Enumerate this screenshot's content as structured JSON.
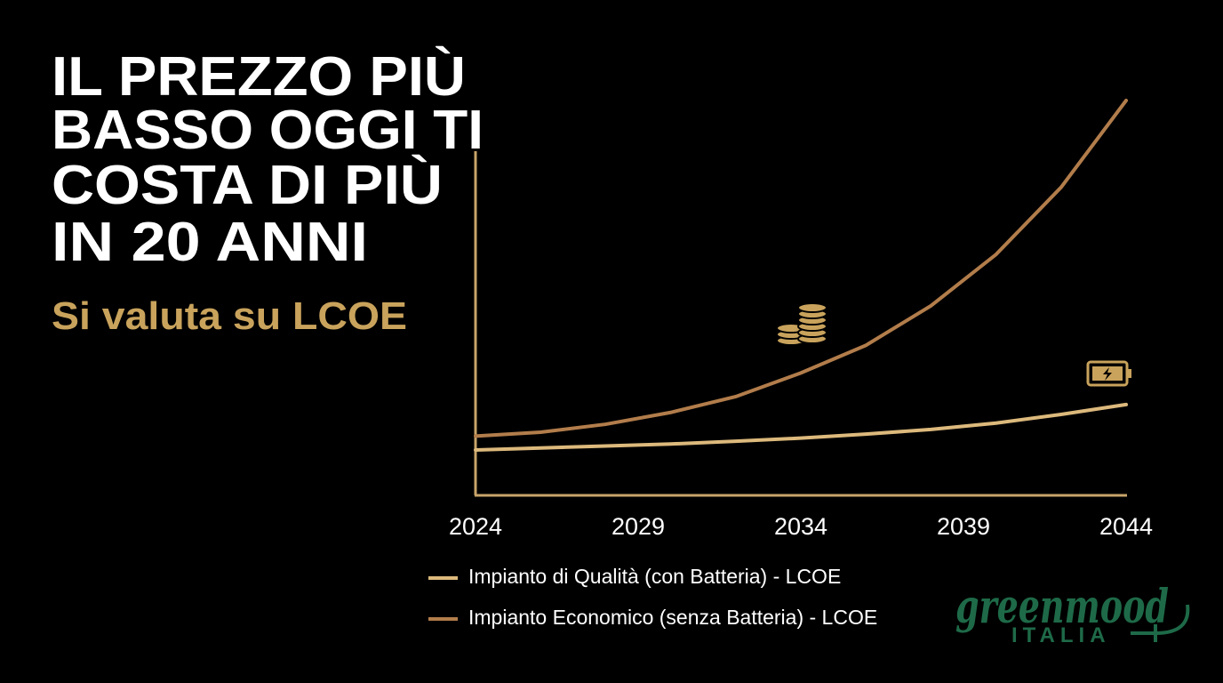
{
  "chart_data": {
    "type": "line",
    "title": [
      "IL PREZZO PIÙ",
      "BASSO OGGI TI",
      "COSTA DI PIÙ",
      "IN 20 ANNI"
    ],
    "subtitle": "Si valuta su LCOE",
    "x": [
      2024,
      2026,
      2028,
      2030,
      2032,
      2034,
      2036,
      2038,
      2040,
      2042,
      2044
    ],
    "series": [
      {
        "name": "Impianto di Qualità (con Batteria) - LCOE",
        "color": "#dcb97c",
        "values": [
          11.5,
          12,
          12.5,
          13,
          13.7,
          14.5,
          15.5,
          16.7,
          18.3,
          20.5,
          23
        ]
      },
      {
        "name": "Impianto Economico (senza Batteria) - LCOE",
        "color": "#b27d4b",
        "values": [
          15,
          16,
          18,
          21,
          25,
          31,
          38,
          48,
          61,
          78,
          100
        ]
      }
    ],
    "xlim": [
      2024,
      2044
    ],
    "xticks": [
      2024,
      2029,
      2034,
      2039,
      2044
    ],
    "ylim": [
      0,
      100
    ],
    "grid": false
  },
  "logo": {
    "name": "greenmood",
    "sub": "ITALIA"
  }
}
